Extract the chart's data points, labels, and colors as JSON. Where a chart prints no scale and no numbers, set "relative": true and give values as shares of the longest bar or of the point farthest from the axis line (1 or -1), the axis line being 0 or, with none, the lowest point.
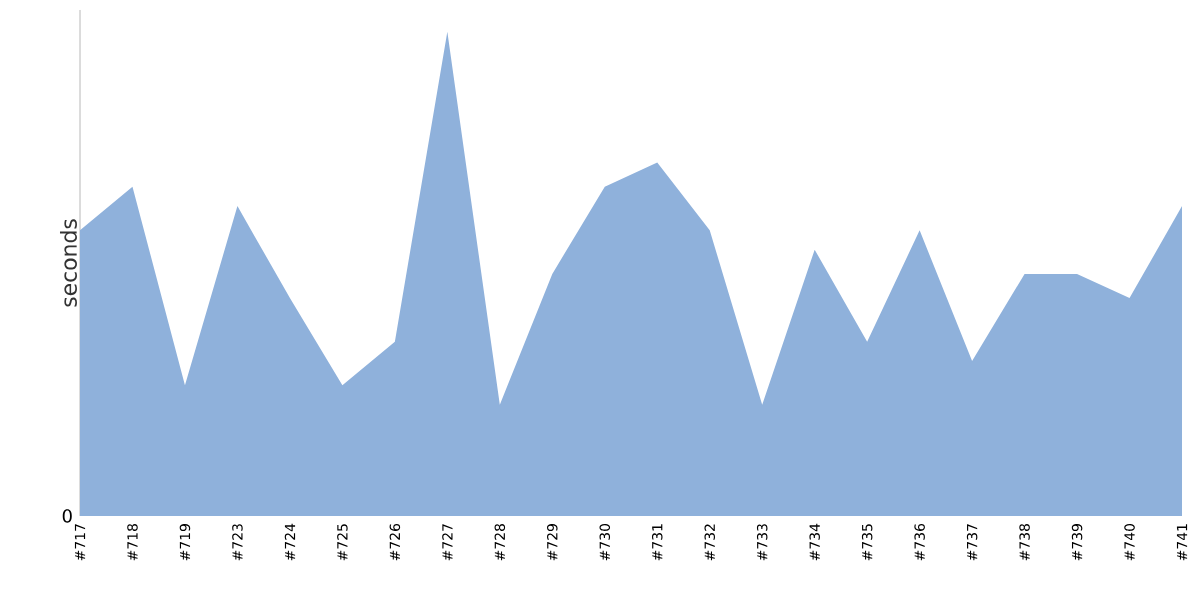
{
  "chart_data": {
    "type": "area",
    "relative": true,
    "ylabel": "seconds",
    "annotations": [
      "0"
    ],
    "categories": [
      "#717",
      "#718",
      "#719",
      "#723",
      "#724",
      "#725",
      "#726",
      "#727",
      "#728",
      "#729",
      "#730",
      "#731",
      "#732",
      "#733",
      "#734",
      "#735",
      "#736",
      "#737",
      "#738",
      "#739",
      "#740",
      "#741"
    ],
    "series": [
      {
        "color": "#8fb1db",
        "values": [
          0.59,
          0.68,
          0.27,
          0.64,
          0.45,
          0.27,
          0.36,
          1,
          0.23,
          0.5,
          0.68,
          0.73,
          0.59,
          0.23,
          0.55,
          0.36,
          0.59,
          0.32,
          0.5,
          0.5,
          0.45,
          0.64
        ]
      }
    ]
  }
}
